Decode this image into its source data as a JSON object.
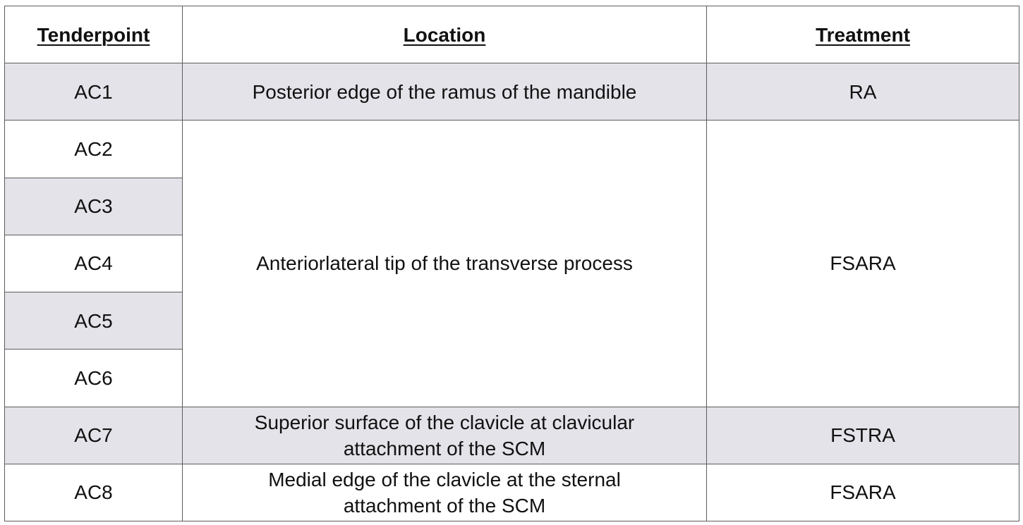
{
  "table": {
    "headers": {
      "tenderpoint": "Tenderpoint",
      "location": "Location",
      "treatment": "Treatment"
    },
    "rows": [
      {
        "tenderpoint": "AC1",
        "location": "Posterior edge of the ramus of the mandible",
        "treatment": "RA"
      },
      {
        "tenderpoint": "AC2"
      },
      {
        "tenderpoint": "AC3"
      },
      {
        "tenderpoint": "AC4"
      },
      {
        "tenderpoint": "AC5"
      },
      {
        "tenderpoint": "AC6"
      },
      {
        "tenderpoint": "AC7",
        "location_line1": "Superior surface of the clavicle at clavicular",
        "location_line2": "attachment of the SCM",
        "treatment": "FSTRA"
      },
      {
        "tenderpoint": "AC8",
        "location_line1": "Medial edge of the clavicle at the sternal",
        "location_line2": "attachment of the SCM",
        "treatment": "FSARA"
      }
    ],
    "merged_group": {
      "location": "Anteriorlateral tip of the transverse process",
      "treatment": "FSARA"
    },
    "colors": {
      "shaded_row": "#e3e3e9",
      "plain_row": "#ffffff",
      "border": "#5c5c5c"
    }
  }
}
